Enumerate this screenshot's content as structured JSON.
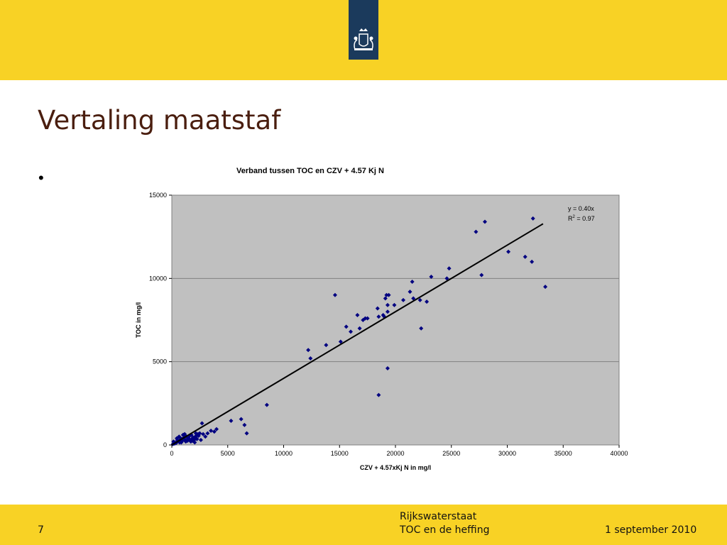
{
  "slide": {
    "title": "Vertaling maatstaf",
    "bullet": "•",
    "page_number": "7",
    "org": "Rijkswaterstaat",
    "subject": "TOC en de heffing",
    "date": "1 september 2010"
  },
  "colors": {
    "band": "#f8d225",
    "logo": "#1b3a5c",
    "title": "#4a1e0f",
    "plot_bg": "#c0c0c0",
    "marker": "#000080"
  },
  "icons": {
    "logo": "royal-coat-of-arms-icon"
  },
  "chart_data": {
    "type": "scatter",
    "title": "Verband tussen TOC en CZV + 4.57 Kj N",
    "xlabel": "CZV + 4.57xKj N in mg/l",
    "ylabel": "TOC in mg/l",
    "xlim": [
      0,
      40000
    ],
    "ylim": [
      0,
      15000
    ],
    "x_ticks": [
      0,
      5000,
      10000,
      15000,
      20000,
      25000,
      30000,
      35000,
      40000
    ],
    "y_ticks": [
      0,
      5000,
      10000,
      15000
    ],
    "x_tick_labels": [
      "0",
      "5000",
      "10000",
      "15000",
      "20000",
      "25000",
      "30000",
      "35000",
      "40000"
    ],
    "y_tick_labels": [
      "0",
      "5000",
      "10000",
      "15000"
    ],
    "grid": "horizontal",
    "trendline": {
      "slope": 0.4,
      "x_range": [
        0,
        33200
      ]
    },
    "annotation": {
      "equation": "y = 0.40x",
      "r2_prefix": "R",
      "r2_exp": "2",
      "r2_suffix": " = 0.97"
    },
    "points": [
      [
        100,
        50
      ],
      [
        200,
        100
      ],
      [
        300,
        150
      ],
      [
        400,
        120
      ],
      [
        500,
        300
      ],
      [
        600,
        250
      ],
      [
        700,
        150
      ],
      [
        800,
        400
      ],
      [
        900,
        350
      ],
      [
        1000,
        600
      ],
      [
        1100,
        450
      ],
      [
        1200,
        300
      ],
      [
        1300,
        500
      ],
      [
        1400,
        250
      ],
      [
        1500,
        400
      ],
      [
        1600,
        550
      ],
      [
        1700,
        200
      ],
      [
        1800,
        350
      ],
      [
        1900,
        450
      ],
      [
        2000,
        300
      ],
      [
        2100,
        500
      ],
      [
        2200,
        400
      ],
      [
        2300,
        600
      ],
      [
        2400,
        550
      ],
      [
        2600,
        300
      ],
      [
        2700,
        1300
      ],
      [
        3000,
        500
      ],
      [
        3200,
        700
      ],
      [
        3500,
        850
      ],
      [
        3800,
        800
      ],
      [
        4000,
        950
      ],
      [
        150,
        200
      ],
      [
        250,
        80
      ],
      [
        450,
        400
      ],
      [
        650,
        500
      ],
      [
        750,
        300
      ],
      [
        850,
        150
      ],
      [
        950,
        250
      ],
      [
        1050,
        600
      ],
      [
        1150,
        650
      ],
      [
        1250,
        200
      ],
      [
        1450,
        350
      ],
      [
        1650,
        300
      ],
      [
        1750,
        600
      ],
      [
        1850,
        250
      ],
      [
        2050,
        150
      ],
      [
        2150,
        700
      ],
      [
        2250,
        350
      ],
      [
        2350,
        650
      ],
      [
        2500,
        700
      ],
      [
        2800,
        650
      ],
      [
        5300,
        1450
      ],
      [
        6200,
        1550
      ],
      [
        6500,
        1200
      ],
      [
        6700,
        700
      ],
      [
        8500,
        2400
      ],
      [
        12200,
        5700
      ],
      [
        12400,
        5200
      ],
      [
        13800,
        6000
      ],
      [
        14600,
        9000
      ],
      [
        15100,
        6200
      ],
      [
        15600,
        7100
      ],
      [
        16000,
        6800
      ],
      [
        16600,
        7800
      ],
      [
        16800,
        7000
      ],
      [
        17100,
        7500
      ],
      [
        17300,
        7600
      ],
      [
        17500,
        7600
      ],
      [
        18400,
        8200
      ],
      [
        18500,
        7700
      ],
      [
        18900,
        7800
      ],
      [
        19000,
        7700
      ],
      [
        19200,
        9000
      ],
      [
        19100,
        8800
      ],
      [
        19300,
        8400
      ],
      [
        19400,
        9000
      ],
      [
        19300,
        8000
      ],
      [
        19900,
        8400
      ],
      [
        20700,
        8700
      ],
      [
        21300,
        9200
      ],
      [
        21500,
        9800
      ],
      [
        21600,
        8800
      ],
      [
        22200,
        8700
      ],
      [
        22800,
        8600
      ],
      [
        23200,
        10100
      ],
      [
        24600,
        10000
      ],
      [
        24800,
        10600
      ],
      [
        27200,
        12800
      ],
      [
        27700,
        10200
      ],
      [
        28000,
        13400
      ],
      [
        30100,
        11600
      ],
      [
        31600,
        11300
      ],
      [
        32200,
        11000
      ],
      [
        32300,
        13600
      ],
      [
        33400,
        9500
      ],
      [
        18500,
        3000
      ],
      [
        19300,
        4600
      ],
      [
        22300,
        7000
      ]
    ]
  }
}
